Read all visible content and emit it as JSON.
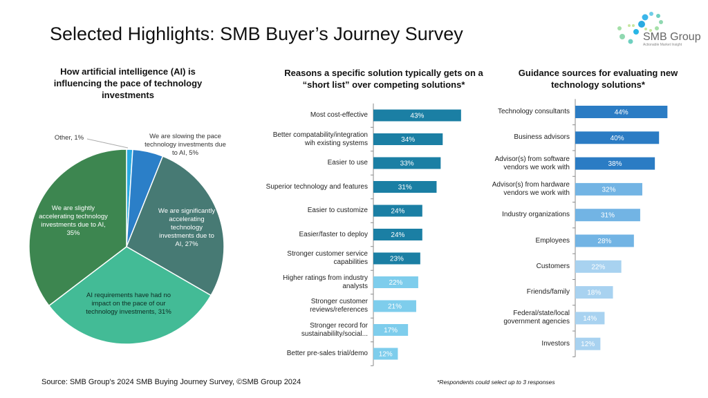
{
  "title": "Selected Highlights: SMB Buyer’s Journey Survey",
  "logo": {
    "name": "SMB Group",
    "tagline": "Actionable Market Insight"
  },
  "footer": {
    "source": "Source: SMB Group’s 2024 SMB Buying Journey Survey, ©SMB Group 2024",
    "note": "*Respondents could select up to 3 responses"
  },
  "chart_data": [
    {
      "type": "pie",
      "title": "How artificial intelligence (AI) is\ninfluencing the pace of technology\ninvestments",
      "slices": [
        {
          "label": "Other, 1%",
          "value": 1,
          "color": "#29aae1"
        },
        {
          "label": "We are slowing the pace\ntechnology investments due\nto AI, 5%",
          "value": 5,
          "color": "#2b7fc8"
        },
        {
          "label": "We are significantly\naccelerating\ntechnology\ninvestments due to\nAI, 27%",
          "value": 27,
          "color": "#477a74"
        },
        {
          "label": "AI requirements have had no\nimpact on the pace of our\ntechnology investments, 31%",
          "value": 31,
          "color": "#43bb96"
        },
        {
          "label": "We are slightly\naccelerating technology\ninvestments due to AI,\n35%",
          "value": 35,
          "color": "#3d8650"
        }
      ]
    },
    {
      "type": "bar",
      "orientation": "horizontal",
      "title": "Reasons a specific solution typically gets on a\n“short list” over competing solutions*",
      "categories": [
        "Most cost-effective",
        "Better compatability/integration\nwih existing systems",
        "Easier to use",
        "Superior technology and features",
        "Easier to customize",
        "Easier/faster to deploy",
        "Stronger customer service\ncapabilities",
        "Higher ratings from industry\nanalysts",
        "Stronger customer\nreviews/references",
        "Stronger record for\nsustainabililty/social...",
        "Better pre-sales trial/demo"
      ],
      "values": [
        43,
        34,
        33,
        31,
        24,
        24,
        23,
        22,
        21,
        17,
        12
      ],
      "data_labels": [
        "43%",
        "34%",
        "33%",
        "31%",
        "24%",
        "24%",
        "23%",
        "22%",
        "21%",
        "17%",
        "12%"
      ],
      "colors": [
        "#1b7fa4",
        "#1b7fa4",
        "#1b7fa4",
        "#1b7fa4",
        "#1b7fa4",
        "#1b7fa4",
        "#1b7fa4",
        "#7ecdec",
        "#7ecdec",
        "#7ecdec",
        "#7ecdec"
      ]
    },
    {
      "type": "bar",
      "orientation": "horizontal",
      "title": "Guidance sources for evaluating new\ntechnology solutions*",
      "categories": [
        "Technology consultants",
        "Business advisors",
        "Advisor(s) from software\nvendors we work with",
        "Advisor(s) from hardware\nvendors we work with",
        "Industry organizations",
        "Employees",
        "Customers",
        "Friends/family",
        "Federal/state/local\ngovernment agencies",
        "Investors"
      ],
      "values": [
        44,
        40,
        38,
        32,
        31,
        28,
        22,
        18,
        14,
        12
      ],
      "data_labels": [
        "44%",
        "40%",
        "38%",
        "32%",
        "31%",
        "28%",
        "22%",
        "18%",
        "14%",
        "12%"
      ],
      "colors": [
        "#2b7cc4",
        "#2b7cc4",
        "#2b7cc4",
        "#72b4e4",
        "#72b4e4",
        "#72b4e4",
        "#a8d2f0",
        "#a8d2f0",
        "#a8d2f0",
        "#a8d2f0"
      ]
    }
  ]
}
